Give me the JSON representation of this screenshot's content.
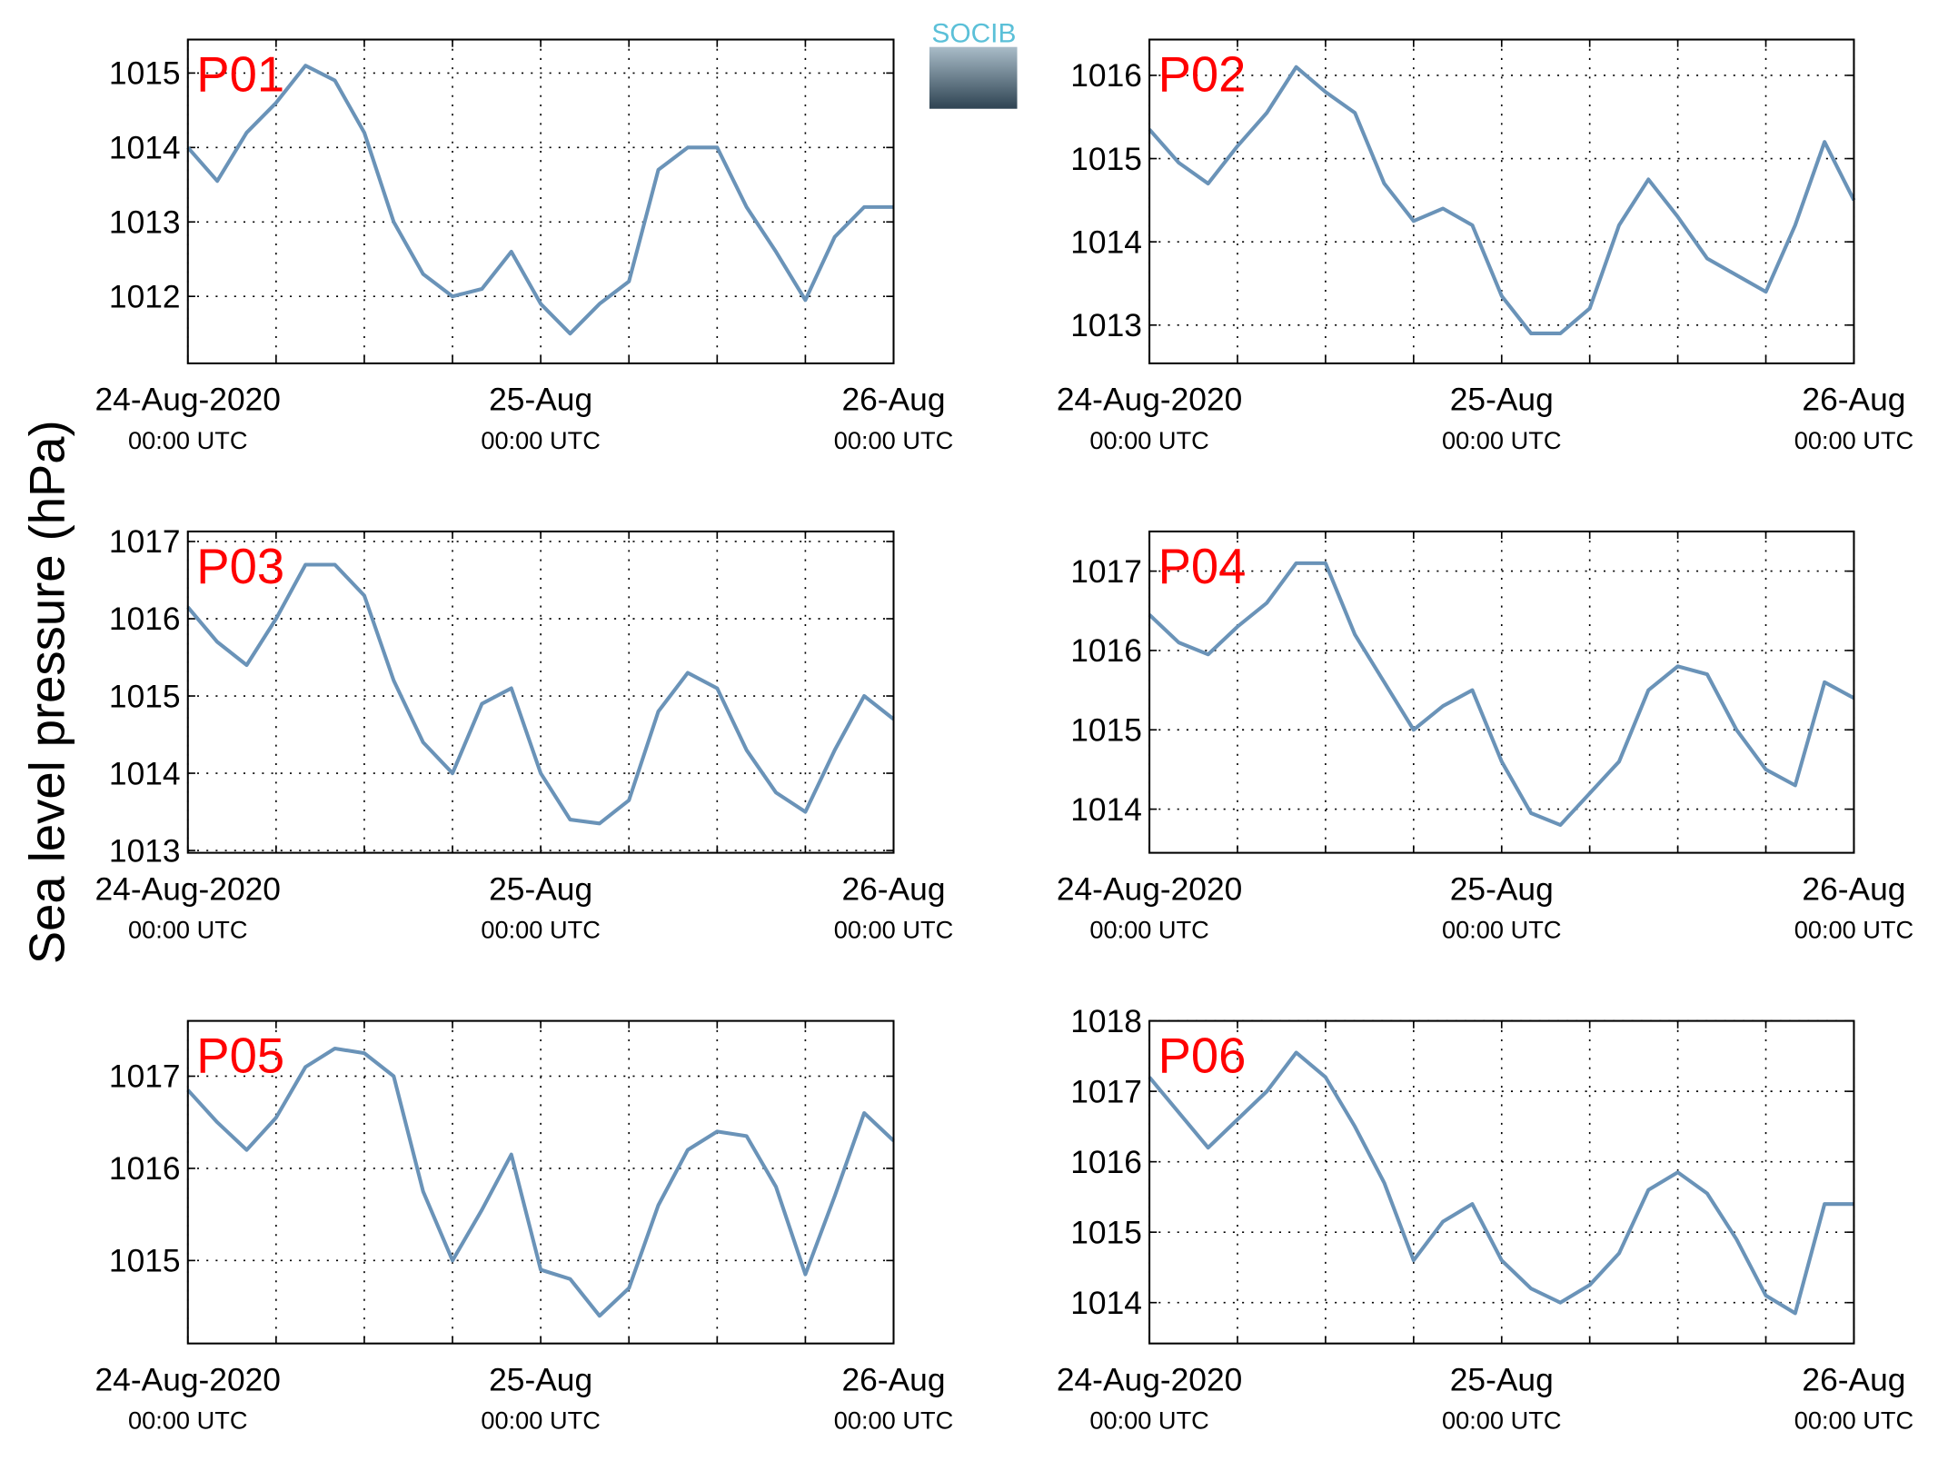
{
  "ylabel": "Sea level pressure (hPa)",
  "logo": "SOCIB",
  "chart_data": [
    {
      "type": "line",
      "title": "P01",
      "x": [
        0,
        2,
        4,
        6,
        8,
        10,
        12,
        14,
        16,
        18,
        20,
        22,
        24,
        26,
        28,
        30,
        32,
        34,
        36,
        38,
        40,
        42,
        44,
        46,
        48
      ],
      "series": [
        {
          "color": "#6a93b8",
          "values": [
            1014.0,
            1013.55,
            1014.2,
            1014.6,
            1015.1,
            1014.9,
            1014.2,
            1013.0,
            1012.3,
            1012.0,
            1012.1,
            1012.6,
            1011.9,
            1011.5,
            1011.9,
            1012.2,
            1013.7,
            1014.0,
            1014.0,
            1013.2,
            1012.6,
            1011.95,
            1012.8,
            1013.2,
            1013.2
          ]
        }
      ],
      "xlim": [
        0,
        48
      ],
      "xticks": [
        {
          "value": 0,
          "label": "24-Aug-2020",
          "sublabel": "00:00 UTC"
        },
        6,
        12,
        18,
        {
          "value": 24,
          "label": "25-Aug",
          "sublabel": "00:00 UTC"
        },
        30,
        36,
        42,
        {
          "value": 48,
          "label": "26-Aug",
          "sublabel": "00:00 UTC"
        }
      ],
      "ylim": [
        1011.1,
        1015.45
      ],
      "yticks": [
        1012,
        1013,
        1014,
        1015
      ],
      "grid": true
    },
    {
      "type": "line",
      "title": "P02",
      "x": [
        0,
        2,
        4,
        6,
        8,
        10,
        12,
        14,
        16,
        18,
        20,
        22,
        24,
        26,
        28,
        30,
        32,
        34,
        36,
        38,
        40,
        42,
        44,
        46,
        48
      ],
      "series": [
        {
          "color": "#6a93b8",
          "values": [
            1015.35,
            1014.95,
            1014.7,
            1015.15,
            1015.55,
            1016.1,
            1015.8,
            1015.55,
            1014.7,
            1014.25,
            1014.4,
            1014.2,
            1013.35,
            1012.9,
            1012.9,
            1013.2,
            1014.2,
            1014.75,
            1014.3,
            1013.8,
            1013.6,
            1013.4,
            1014.2,
            1015.2,
            1014.5
          ]
        }
      ],
      "xlim": [
        0,
        48
      ],
      "xticks": [
        {
          "value": 0,
          "label": "24-Aug-2020",
          "sublabel": "00:00 UTC"
        },
        6,
        12,
        18,
        {
          "value": 24,
          "label": "25-Aug",
          "sublabel": "00:00 UTC"
        },
        30,
        36,
        42,
        {
          "value": 48,
          "label": "26-Aug",
          "sublabel": "00:00 UTC"
        }
      ],
      "ylim": [
        1012.54,
        1016.43
      ],
      "yticks": [
        1013,
        1014,
        1015,
        1016
      ],
      "grid": true
    },
    {
      "type": "line",
      "title": "P03",
      "x": [
        0,
        2,
        4,
        6,
        8,
        10,
        12,
        14,
        16,
        18,
        20,
        22,
        24,
        26,
        28,
        30,
        32,
        34,
        36,
        38,
        40,
        42,
        44,
        46,
        48
      ],
      "series": [
        {
          "color": "#6a93b8",
          "values": [
            1016.15,
            1015.7,
            1015.4,
            1016.0,
            1016.7,
            1016.7,
            1016.3,
            1015.2,
            1014.4,
            1014.0,
            1014.9,
            1015.1,
            1014.0,
            1013.4,
            1013.35,
            1013.65,
            1014.8,
            1015.3,
            1015.1,
            1014.3,
            1013.75,
            1013.5,
            1014.3,
            1015.0,
            1014.7
          ]
        }
      ],
      "xlim": [
        0,
        48
      ],
      "xticks": [
        {
          "value": 0,
          "label": "24-Aug-2020",
          "sublabel": "00:00 UTC"
        },
        6,
        12,
        18,
        {
          "value": 24,
          "label": "25-Aug",
          "sublabel": "00:00 UTC"
        },
        30,
        36,
        42,
        {
          "value": 48,
          "label": "26-Aug",
          "sublabel": "00:00 UTC"
        }
      ],
      "ylim": [
        1012.97,
        1017.13
      ],
      "yticks": [
        1013,
        1014,
        1015,
        1016,
        1017
      ],
      "grid": true
    },
    {
      "type": "line",
      "title": "P04",
      "x": [
        0,
        2,
        4,
        6,
        8,
        10,
        12,
        14,
        16,
        18,
        20,
        22,
        24,
        26,
        28,
        30,
        32,
        34,
        36,
        38,
        40,
        42,
        44,
        46,
        48
      ],
      "series": [
        {
          "color": "#6a93b8",
          "values": [
            1016.45,
            1016.1,
            1015.95,
            1016.3,
            1016.6,
            1017.1,
            1017.1,
            1016.2,
            1015.6,
            1015.0,
            1015.3,
            1015.5,
            1014.6,
            1013.95,
            1013.8,
            1014.2,
            1014.6,
            1015.5,
            1015.8,
            1015.7,
            1015.0,
            1014.5,
            1014.3,
            1015.6,
            1015.4
          ]
        }
      ],
      "xlim": [
        0,
        48
      ],
      "xticks": [
        {
          "value": 0,
          "label": "24-Aug-2020",
          "sublabel": "00:00 UTC"
        },
        6,
        12,
        18,
        {
          "value": 24,
          "label": "25-Aug",
          "sublabel": "00:00 UTC"
        },
        30,
        36,
        42,
        {
          "value": 48,
          "label": "26-Aug",
          "sublabel": "00:00 UTC"
        }
      ],
      "ylim": [
        1013.45,
        1017.5
      ],
      "yticks": [
        1014,
        1015,
        1016,
        1017
      ],
      "grid": true
    },
    {
      "type": "line",
      "title": "P05",
      "x": [
        0,
        2,
        4,
        6,
        8,
        10,
        12,
        14,
        16,
        18,
        20,
        22,
        24,
        26,
        28,
        30,
        32,
        34,
        36,
        38,
        40,
        42,
        44,
        46,
        48
      ],
      "series": [
        {
          "color": "#6a93b8",
          "values": [
            1016.85,
            1016.5,
            1016.2,
            1016.55,
            1017.1,
            1017.3,
            1017.25,
            1017.0,
            1015.75,
            1015.0,
            1015.55,
            1016.15,
            1014.9,
            1014.8,
            1014.4,
            1014.7,
            1015.6,
            1016.2,
            1016.4,
            1016.35,
            1015.8,
            1014.85,
            1015.7,
            1016.6,
            1016.3
          ]
        }
      ],
      "xlim": [
        0,
        48
      ],
      "xticks": [
        {
          "value": 0,
          "label": "24-Aug-2020",
          "sublabel": "00:00 UTC"
        },
        6,
        12,
        18,
        {
          "value": 24,
          "label": "25-Aug",
          "sublabel": "00:00 UTC"
        },
        30,
        36,
        42,
        {
          "value": 48,
          "label": "26-Aug",
          "sublabel": "00:00 UTC"
        }
      ],
      "ylim": [
        1014.1,
        1017.6
      ],
      "yticks": [
        1015,
        1016,
        1017
      ],
      "grid": true
    },
    {
      "type": "line",
      "title": "P06",
      "x": [
        0,
        2,
        4,
        6,
        8,
        10,
        12,
        14,
        16,
        18,
        20,
        22,
        24,
        26,
        28,
        30,
        32,
        34,
        36,
        38,
        40,
        42,
        44,
        46,
        48
      ],
      "series": [
        {
          "color": "#6a93b8",
          "values": [
            1017.2,
            1016.7,
            1016.2,
            1016.6,
            1017.0,
            1017.55,
            1017.2,
            1016.5,
            1015.7,
            1014.6,
            1015.15,
            1015.4,
            1014.6,
            1014.2,
            1014.0,
            1014.25,
            1014.7,
            1015.6,
            1015.85,
            1015.55,
            1014.9,
            1014.1,
            1013.85,
            1015.4,
            1015.4
          ]
        }
      ],
      "xlim": [
        0,
        48
      ],
      "xticks": [
        {
          "value": 0,
          "label": "24-Aug-2020",
          "sublabel": "00:00 UTC"
        },
        6,
        12,
        18,
        {
          "value": 24,
          "label": "25-Aug",
          "sublabel": "00:00 UTC"
        },
        30,
        36,
        42,
        {
          "value": 48,
          "label": "26-Aug",
          "sublabel": "00:00 UTC"
        }
      ],
      "ylim": [
        1013.42,
        1018.0
      ],
      "yticks": [
        1014,
        1015,
        1016,
        1017,
        1018
      ],
      "grid": true
    }
  ]
}
